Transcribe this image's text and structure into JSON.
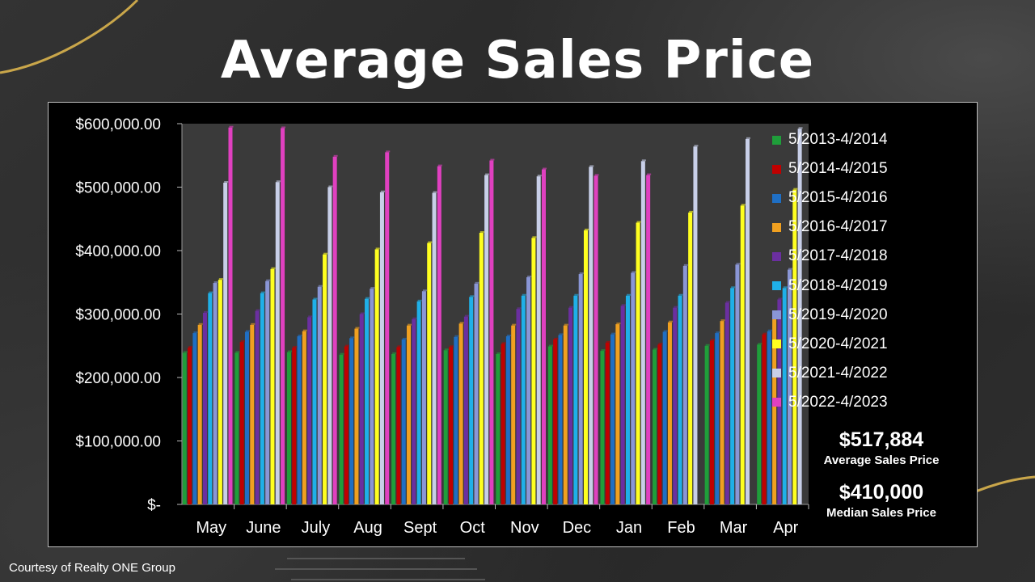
{
  "title": "Average Sales Price",
  "footer": "Courtesy of Realty ONE Group",
  "stats": {
    "average_value": "$517,884",
    "average_label": "Average  Sales Price",
    "median_value": "$410,000",
    "median_label": "Median  Sales Price"
  },
  "chart_data": {
    "type": "bar",
    "title": "Average Sales Price",
    "xlabel": "",
    "ylabel": "",
    "ylim": [
      0,
      600000
    ],
    "y_ticks": [
      {
        "value": 600000,
        "label": "$600,000.00"
      },
      {
        "value": 500000,
        "label": "$500,000.00"
      },
      {
        "value": 400000,
        "label": "$400,000.00"
      },
      {
        "value": 300000,
        "label": "$300,000.00"
      },
      {
        "value": 200000,
        "label": "$200,000.00"
      },
      {
        "value": 100000,
        "label": "$100,000.00"
      },
      {
        "value": 0,
        "label": "$-"
      }
    ],
    "grid": false,
    "legend_position": "right",
    "categories": [
      "May",
      "June",
      "July",
      "Aug",
      "Sept",
      "Oct",
      "Nov",
      "Dec",
      "Jan",
      "Feb",
      "Mar",
      "Apr"
    ],
    "series": [
      {
        "name": "5/2013-4/2014",
        "color": "#1f9e3a",
        "values": [
          239000,
          239000,
          240000,
          236000,
          237000,
          243000,
          237000,
          249000,
          242000,
          244000,
          250000,
          252000
        ]
      },
      {
        "name": "5/2014-4/2015",
        "color": "#c00000",
        "values": [
          247000,
          256000,
          247000,
          249000,
          248000,
          248000,
          253000,
          260000,
          255000,
          252000,
          258000,
          268000
        ]
      },
      {
        "name": "5/2015-4/2016",
        "color": "#1f6fc4",
        "values": [
          270000,
          272000,
          265000,
          262000,
          260000,
          264000,
          265000,
          267000,
          268000,
          272000,
          270000,
          273000
        ]
      },
      {
        "name": "5/2016-4/2017",
        "color": "#f0a020",
        "values": [
          283000,
          283000,
          273000,
          277000,
          282000,
          285000,
          282000,
          282000,
          284000,
          287000,
          289000,
          293000
        ]
      },
      {
        "name": "5/2017-4/2018",
        "color": "#6b2fa0",
        "values": [
          302000,
          305000,
          295000,
          300000,
          292000,
          296000,
          308000,
          310000,
          313000,
          310000,
          318000,
          323000
        ]
      },
      {
        "name": "5/2018-4/2019",
        "color": "#1fb0e8",
        "values": [
          333000,
          333000,
          323000,
          324000,
          320000,
          327000,
          329000,
          329000,
          329000,
          329000,
          341000,
          341000
        ]
      },
      {
        "name": "5/2019-4/2020",
        "color": "#8a96d6",
        "values": [
          349000,
          352000,
          343000,
          340000,
          336000,
          348000,
          358000,
          363000,
          365000,
          376000,
          378000,
          370000
        ]
      },
      {
        "name": "5/2020-4/2021",
        "color": "#ffff20",
        "values": [
          354000,
          371000,
          394000,
          402000,
          412000,
          428000,
          420000,
          432000,
          444000,
          460000,
          471000,
          496000
        ]
      },
      {
        "name": "5/2021-4/2022",
        "color": "#c8cfe8",
        "values": [
          507000,
          508000,
          500000,
          492000,
          491000,
          519000,
          517000,
          532000,
          541000,
          564000,
          576000,
          592000
        ]
      },
      {
        "name": "5/2022-4/2023",
        "color": "#e040c0",
        "values": [
          594000,
          593000,
          548000,
          555000,
          533000,
          542000,
          528000,
          518000,
          519000,
          null,
          null,
          null
        ]
      }
    ]
  }
}
